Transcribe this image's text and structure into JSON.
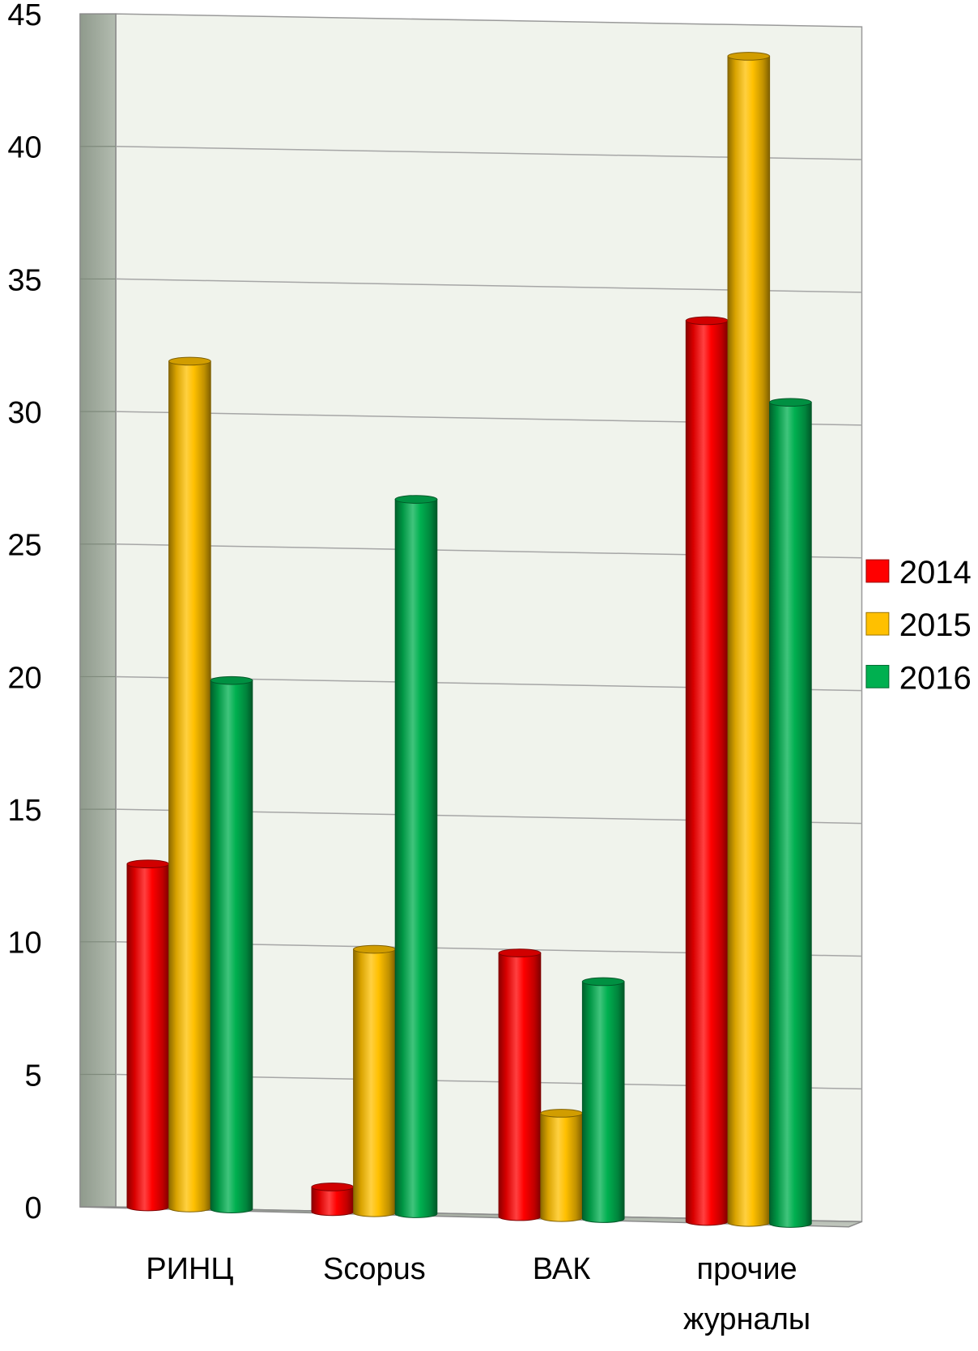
{
  "chart_data": {
    "type": "bar",
    "style": "3d-cylinder",
    "categories": [
      "РИНЦ",
      "Scopus",
      "ВАК",
      [
        "прочие",
        "журналы"
      ]
    ],
    "series": [
      {
        "name": "2014",
        "color": "#ff0000",
        "values": [
          13,
          1,
          10,
          34
        ]
      },
      {
        "name": "2015",
        "color": "#ffc000",
        "values": [
          32,
          10,
          4,
          44
        ]
      },
      {
        "name": "2016",
        "color": "#00b050",
        "values": [
          20,
          27,
          9,
          31
        ]
      }
    ],
    "ylim": [
      0,
      45
    ],
    "yticks": [
      0,
      5,
      10,
      15,
      20,
      25,
      30,
      35,
      40,
      45
    ],
    "grid": true,
    "legend": "right",
    "title": "",
    "xlabel": "",
    "ylabel": ""
  }
}
